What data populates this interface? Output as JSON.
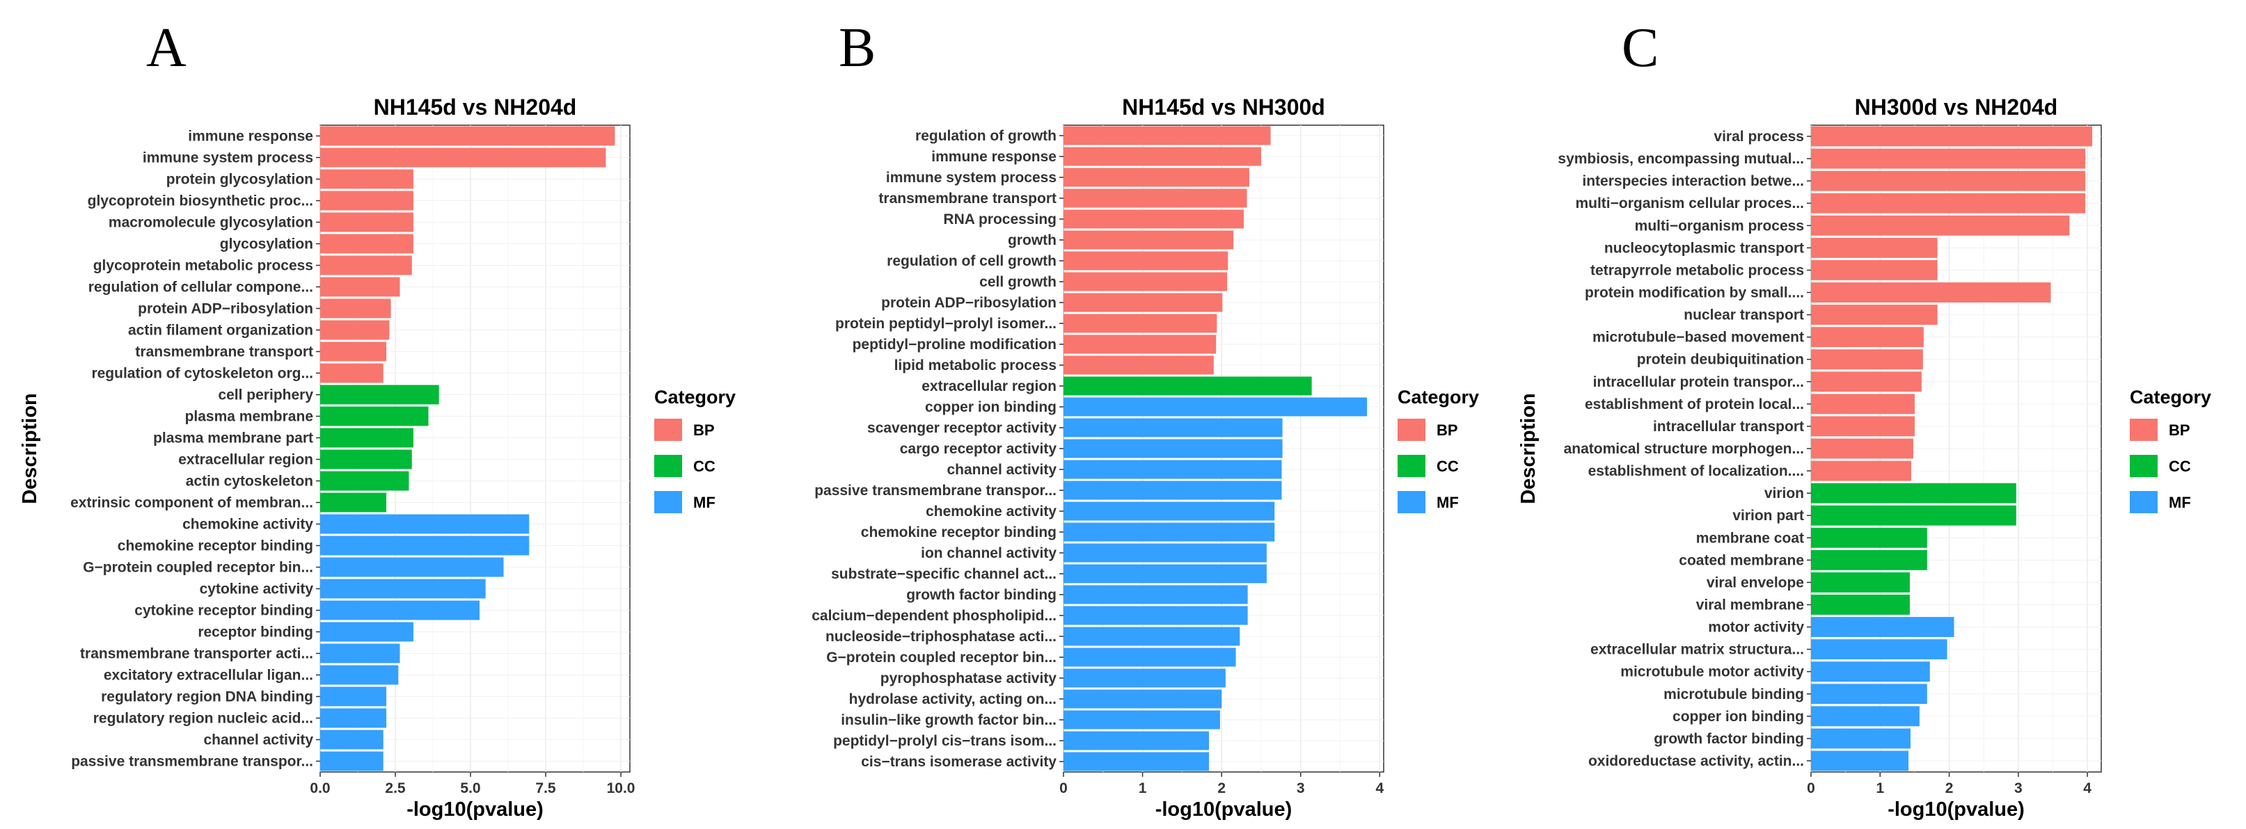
{
  "colors": {
    "BP": "#F8766D",
    "CC": "#00BA38",
    "MF": "#34A0FF"
  },
  "chart_data": [
    {
      "panel_label": "A",
      "type": "bar",
      "orientation": "horizontal",
      "title": "NH145d vs NH204d",
      "xlabel": "-log10(pvalue)",
      "ylabel": "Description",
      "xlim": [
        0,
        10.3
      ],
      "xticks": [
        "0.0",
        "2.5",
        "5.0",
        "7.5",
        "10.0"
      ],
      "legend_title": "Category",
      "legend_items": [
        "BP",
        "CC",
        "MF"
      ],
      "legend_position": "right",
      "categories": [
        "immune response",
        "immune system process",
        "protein glycosylation",
        "glycoprotein biosynthetic proc...",
        "macromolecule glycosylation",
        "glycosylation",
        "glycoprotein metabolic process",
        "regulation of cellular compone...",
        "protein ADP−ribosylation",
        "actin filament organization",
        "transmembrane transport",
        "regulation of cytoskeleton org...",
        "cell periphery",
        "plasma membrane",
        "plasma membrane part",
        "extracellular region",
        "actin cytoskeleton",
        "extrinsic component of membran...",
        "chemokine activity",
        "chemokine receptor binding",
        "G−protein coupled receptor bin...",
        "cytokine activity",
        "cytokine receptor binding",
        "receptor binding",
        "transmembrane transporter acti...",
        "excitatory extracellular ligan...",
        "regulatory region DNA binding",
        "regulatory region nucleic acid...",
        "channel activity",
        "passive transmembrane transpor..."
      ],
      "values": [
        9.8,
        9.5,
        3.1,
        3.1,
        3.1,
        3.1,
        3.05,
        2.65,
        2.35,
        2.3,
        2.2,
        2.1,
        3.95,
        3.6,
        3.1,
        3.05,
        2.95,
        2.2,
        6.95,
        6.95,
        6.1,
        5.5,
        5.3,
        3.1,
        2.65,
        2.6,
        2.2,
        2.2,
        2.1,
        2.1
      ],
      "groups": [
        "BP",
        "BP",
        "BP",
        "BP",
        "BP",
        "BP",
        "BP",
        "BP",
        "BP",
        "BP",
        "BP",
        "BP",
        "CC",
        "CC",
        "CC",
        "CC",
        "CC",
        "CC",
        "MF",
        "MF",
        "MF",
        "MF",
        "MF",
        "MF",
        "MF",
        "MF",
        "MF",
        "MF",
        "MF",
        "MF"
      ]
    },
    {
      "panel_label": "B",
      "type": "bar",
      "orientation": "horizontal",
      "title": "NH145d vs NH300d",
      "xlabel": "-log10(pvalue)",
      "ylabel": "",
      "xlim": [
        0,
        4.05
      ],
      "xticks": [
        "0",
        "1",
        "2",
        "3",
        "4"
      ],
      "legend_title": "Category",
      "legend_items": [
        "BP",
        "CC",
        "MF"
      ],
      "legend_position": "right",
      "categories": [
        "regulation of growth",
        "immune response",
        "immune system process",
        "transmembrane transport",
        "RNA processing",
        "growth",
        "regulation of cell growth",
        "cell growth",
        "protein ADP−ribosylation",
        "protein peptidyl−prolyl isomer...",
        "peptidyl−proline modification",
        "lipid metabolic process",
        "extracellular region",
        "copper ion binding",
        "scavenger receptor activity",
        "cargo receptor activity",
        "channel activity",
        "passive transmembrane transpor...",
        "chemokine activity",
        "chemokine receptor binding",
        "ion channel activity",
        "substrate−specific channel act...",
        "growth factor binding",
        "calcium−dependent phospholipid...",
        "nucleoside−triphosphatase acti...",
        "G−protein coupled receptor bin...",
        "pyrophosphatase activity",
        "hydrolase activity, acting on...",
        "insulin−like growth factor bin...",
        "peptidyl−prolyl cis−trans isom...",
        "cis−trans isomerase activity"
      ],
      "values": [
        2.62,
        2.5,
        2.35,
        2.32,
        2.28,
        2.15,
        2.08,
        2.07,
        2.01,
        1.94,
        1.93,
        1.9,
        3.14,
        3.84,
        2.77,
        2.77,
        2.76,
        2.76,
        2.67,
        2.67,
        2.57,
        2.57,
        2.33,
        2.33,
        2.23,
        2.18,
        2.05,
        2.0,
        1.98,
        1.84,
        1.84
      ],
      "groups": [
        "BP",
        "BP",
        "BP",
        "BP",
        "BP",
        "BP",
        "BP",
        "BP",
        "BP",
        "BP",
        "BP",
        "BP",
        "CC",
        "MF",
        "MF",
        "MF",
        "MF",
        "MF",
        "MF",
        "MF",
        "MF",
        "MF",
        "MF",
        "MF",
        "MF",
        "MF",
        "MF",
        "MF",
        "MF",
        "MF",
        "MF"
      ]
    },
    {
      "panel_label": "C",
      "type": "bar",
      "orientation": "horizontal",
      "title": "NH300d vs NH204d",
      "xlabel": "-log10(pvalue)",
      "ylabel": "Description",
      "xlim": [
        0,
        4.2
      ],
      "xticks": [
        "0",
        "1",
        "2",
        "3",
        "4"
      ],
      "legend_title": "Category",
      "legend_items": [
        "BP",
        "CC",
        "MF"
      ],
      "legend_position": "right",
      "categories": [
        "viral process",
        "symbiosis, encompassing mutual...",
        "interspecies interaction betwe...",
        "multi−organism cellular proces...",
        "multi−organism process",
        "nucleocytoplasmic transport",
        "tetrapyrrole metabolic process",
        "protein modification by small....",
        "nuclear transport",
        "microtubule−based movement",
        "protein deubiquitination",
        "intracellular protein transpor...",
        "establishment of protein local...",
        "intracellular transport",
        "anatomical structure morphogen...",
        "establishment of localization....",
        "virion",
        "virion part",
        "membrane coat",
        "coated membrane",
        "viral envelope",
        "viral membrane",
        "motor activity",
        "extracellular matrix structura...",
        "microtubule motor activity",
        "microtubule binding",
        "copper ion binding",
        "growth factor binding",
        "oxidoreductase activity, actin..."
      ],
      "values": [
        4.07,
        3.97,
        3.97,
        3.97,
        3.74,
        1.83,
        1.83,
        3.47,
        1.83,
        1.63,
        1.62,
        1.6,
        1.5,
        1.5,
        1.48,
        1.45,
        2.97,
        2.97,
        1.68,
        1.68,
        1.43,
        1.43,
        2.07,
        1.97,
        1.72,
        1.68,
        1.57,
        1.44,
        1.41
      ],
      "groups": [
        "BP",
        "BP",
        "BP",
        "BP",
        "BP",
        "BP",
        "BP",
        "BP",
        "BP",
        "BP",
        "BP",
        "BP",
        "BP",
        "BP",
        "BP",
        "BP",
        "CC",
        "CC",
        "CC",
        "CC",
        "CC",
        "CC",
        "MF",
        "MF",
        "MF",
        "MF",
        "MF",
        "MF",
        "MF"
      ]
    }
  ]
}
